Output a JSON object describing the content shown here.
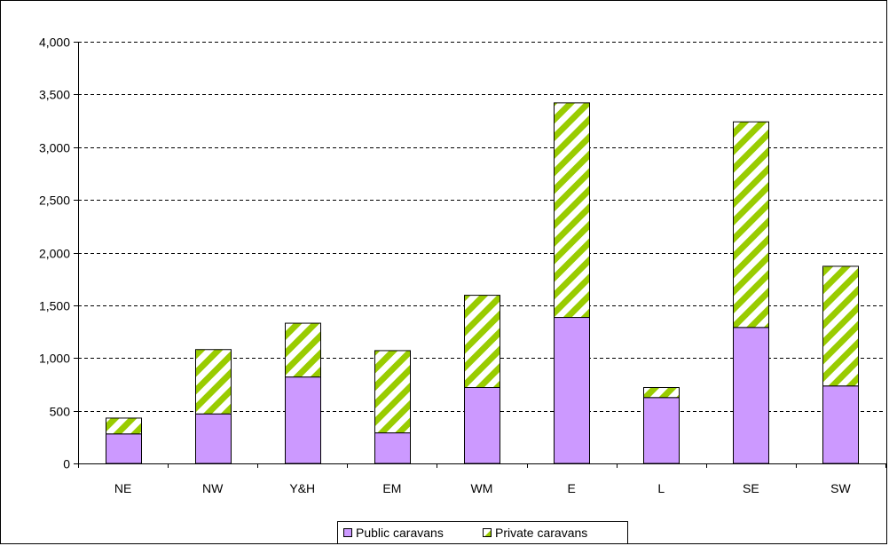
{
  "chart_data": {
    "type": "bar",
    "stacked": true,
    "categories": [
      "NE",
      "NW",
      "Y&H",
      "EM",
      "WM",
      "E",
      "L",
      "SE",
      "SW"
    ],
    "series": [
      {
        "name": "Public caravans",
        "values": [
          280,
          470,
          820,
          290,
          720,
          1385,
          625,
          1290,
          735
        ],
        "color": "#cc99ff"
      },
      {
        "name": "Private caravans",
        "values": [
          150,
          610,
          510,
          780,
          875,
          2035,
          95,
          1950,
          1135
        ],
        "color": "#99cc00"
      }
    ],
    "y_ticks": [
      "0",
      "500",
      "1,000",
      "1,500",
      "2,000",
      "2,500",
      "3,000",
      "3,500",
      "4,000"
    ],
    "ylim": [
      0,
      4000
    ],
    "grid": "dashed horizontal",
    "legend_position": "bottom"
  }
}
